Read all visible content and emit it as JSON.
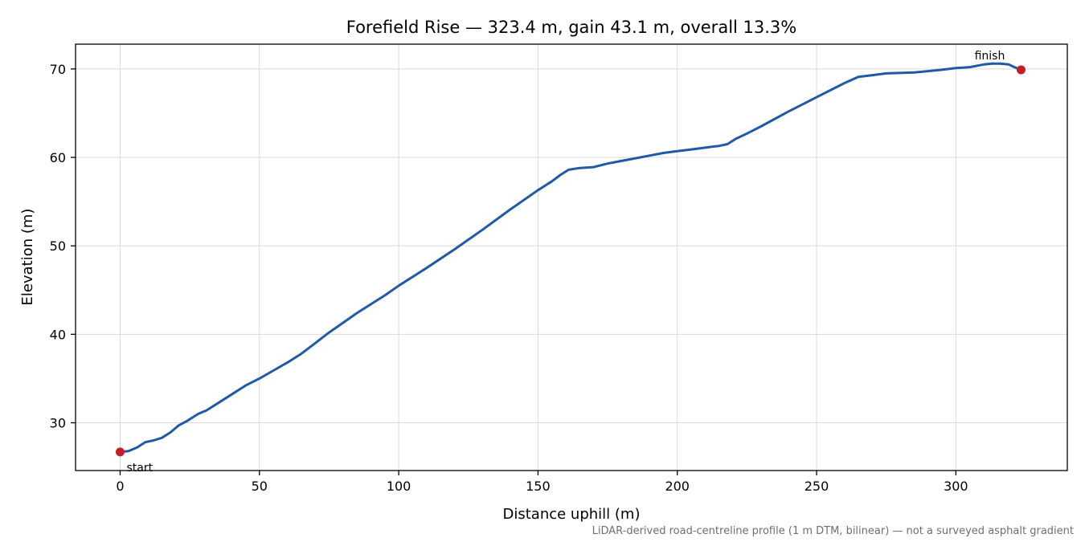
{
  "chart_data": {
    "type": "line",
    "title": "Forefield Rise — 323.4 m, gain 43.1 m, overall 13.3%",
    "xlabel": "Distance uphill (m)",
    "ylabel": "Elevation (m)",
    "footnote": "LiDAR-derived road-centreline profile (1 m DTM, bilinear) — not a surveyed asphalt gradient",
    "xlim": [
      -16,
      340
    ],
    "ylim": [
      24.6,
      72.8
    ],
    "x_ticks": [
      0,
      50,
      100,
      150,
      200,
      250,
      300
    ],
    "y_ticks": [
      30,
      40,
      50,
      60,
      70
    ],
    "grid": true,
    "line_color": "#1f5aa6",
    "marker_color": "#c41e2a",
    "series": [
      {
        "x": [
          0,
          3,
          6,
          9,
          12,
          15,
          18,
          21,
          24,
          26,
          28,
          31,
          35,
          40,
          45,
          50,
          55,
          60,
          65,
          70,
          75,
          80,
          85,
          90,
          95,
          100,
          110,
          120,
          125,
          130,
          140,
          150,
          155,
          158,
          161,
          165,
          170,
          175,
          180,
          185,
          190,
          195,
          200,
          205,
          210,
          215,
          218,
          221,
          225,
          230,
          240,
          250,
          260,
          265,
          270,
          275,
          285,
          295,
          300,
          305,
          310,
          313,
          316,
          319,
          321,
          323.4
        ],
        "y": [
          26.7,
          26.8,
          27.2,
          27.8,
          28.0,
          28.3,
          28.9,
          29.7,
          30.2,
          30.6,
          31.0,
          31.4,
          32.2,
          33.2,
          34.2,
          35.0,
          35.9,
          36.8,
          37.8,
          39.0,
          40.2,
          41.3,
          42.4,
          43.4,
          44.4,
          45.5,
          47.5,
          49.6,
          50.7,
          51.8,
          54.1,
          56.3,
          57.3,
          58.0,
          58.6,
          58.8,
          58.9,
          59.3,
          59.6,
          59.9,
          60.2,
          60.5,
          60.7,
          60.9,
          61.1,
          61.3,
          61.5,
          62.1,
          62.7,
          63.5,
          65.2,
          66.8,
          68.4,
          69.1,
          69.3,
          69.5,
          69.6,
          69.9,
          70.1,
          70.2,
          70.5,
          70.6,
          70.6,
          70.5,
          70.2,
          69.9
        ]
      }
    ],
    "annotations": [
      {
        "text": "start",
        "x": 0,
        "y": 26.7
      },
      {
        "text": "finish",
        "x": 323.4,
        "y": 69.9
      }
    ]
  }
}
